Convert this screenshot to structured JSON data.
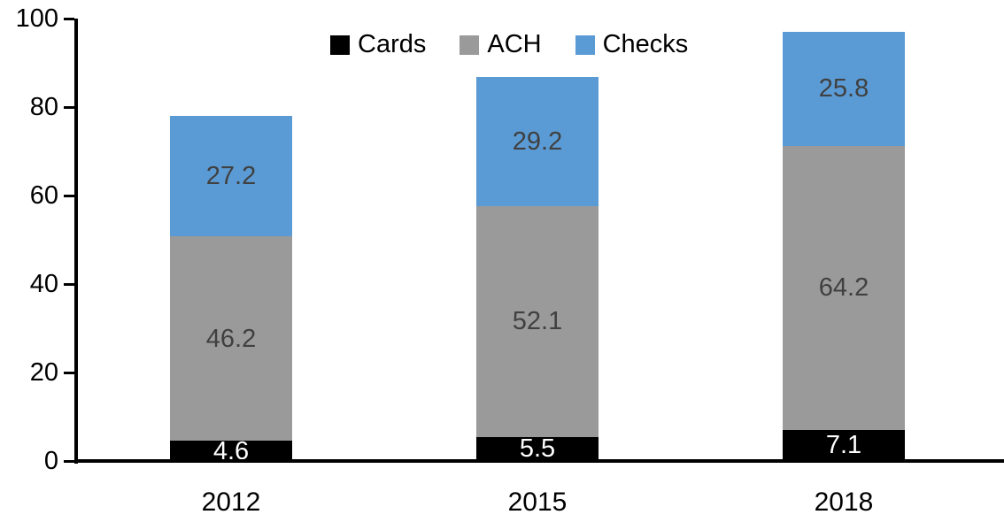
{
  "chart_data": {
    "type": "bar",
    "stacked": true,
    "title": "",
    "categories": [
      "2012",
      "2015",
      "2018"
    ],
    "series": [
      {
        "name": "Cards",
        "color": "#000000",
        "label_color": "#FFFFFF",
        "values": [
          4.6,
          5.5,
          7.1
        ]
      },
      {
        "name": "ACH",
        "color": "#9A9A9A",
        "label_color": "#404040",
        "values": [
          46.2,
          52.1,
          64.2
        ]
      },
      {
        "name": "Checks",
        "color": "#5B9BD5",
        "label_color": "#404040",
        "values": [
          27.2,
          29.2,
          25.8
        ]
      }
    ],
    "totals": [
      78.0,
      86.8,
      97.1
    ],
    "xlabel": "",
    "ylabel": "",
    "ylim": [
      0,
      100
    ],
    "yticks": [
      0,
      20,
      40,
      60,
      80,
      100
    ],
    "grid": false,
    "legend_position": "top",
    "axis_color": "#000000"
  }
}
